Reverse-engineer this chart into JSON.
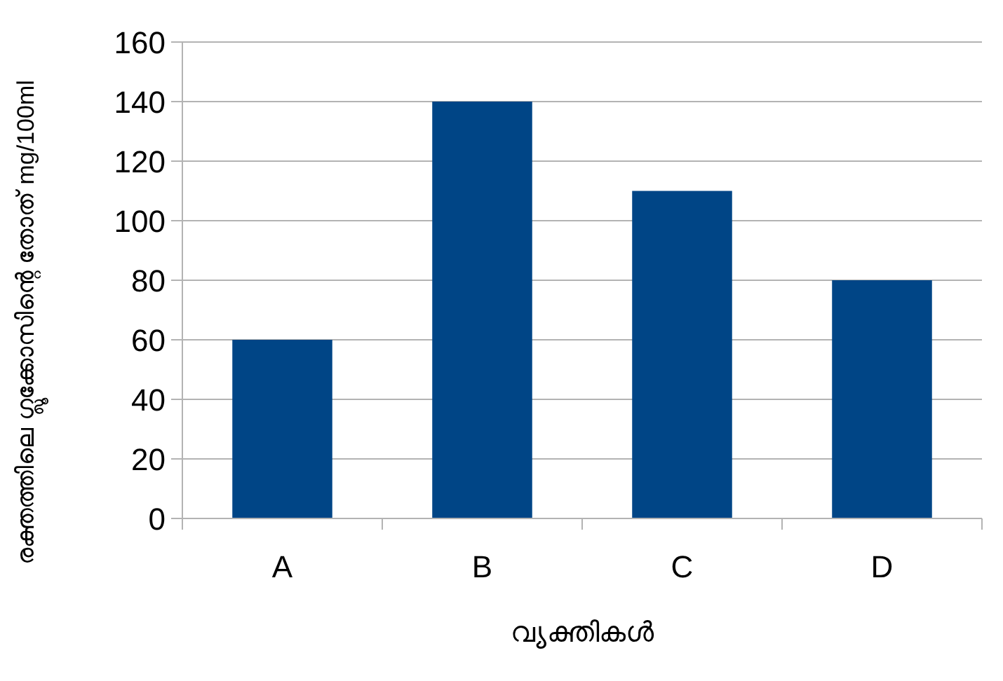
{
  "chart_data": {
    "type": "bar",
    "xlabel": "വ്യക്തികൾ",
    "ylabel": "രക്തത്തിലെ ഗ്ലൂക്കോസിന്റെ തോത് mg/100ml",
    "categories": [
      "A",
      "B",
      "C",
      "D"
    ],
    "values": [
      60,
      140,
      110,
      80
    ],
    "color": "#004586",
    "ylim": [
      0,
      160
    ],
    "yticks": [
      0,
      20,
      40,
      60,
      80,
      100,
      120,
      140,
      160
    ],
    "grid": "y"
  }
}
